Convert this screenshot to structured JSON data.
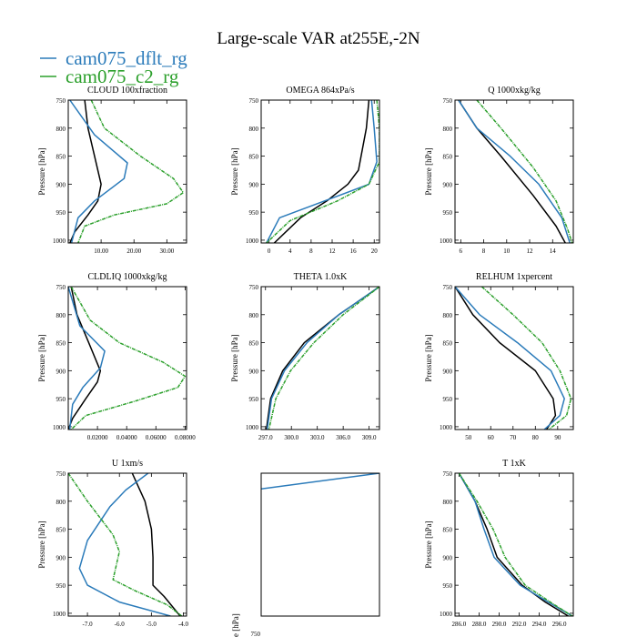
{
  "page": {
    "title": "Large-scale VAR at255E,-2N",
    "legend": [
      {
        "label": "cam075_dflt_rg",
        "color": "#2b7bba"
      },
      {
        "label": "cam075_c2_rg",
        "color": "#2ca02c"
      }
    ],
    "legend_placement": "top-left"
  },
  "colors": {
    "black_series": "#000000",
    "dflt": "#2b7bba",
    "c2": "#2ca02c"
  },
  "chart_data": [
    {
      "type": "line",
      "title": "CLOUD  100xfraction",
      "ylabel": "Pressure [hPa]",
      "xlim": [
        0,
        36
      ],
      "ylim": [
        1005,
        750
      ],
      "xticks": [
        10,
        20,
        30
      ],
      "xtick_labels": [
        "10.00",
        "20.00",
        "30.00"
      ],
      "yticks": [
        750,
        800,
        850,
        900,
        950,
        1000
      ],
      "ytick_labels": [
        "750",
        "800",
        "850",
        "900",
        "950",
        "1000"
      ],
      "series": [
        {
          "color": "#000000",
          "dashed": false,
          "x": [
            5,
            6,
            8,
            10,
            9,
            6,
            2,
            0.5
          ],
          "y": [
            750,
            800,
            850,
            900,
            930,
            955,
            985,
            1005
          ]
        },
        {
          "color": "#2b7bba",
          "dashed": false,
          "x": [
            0.5,
            8,
            18,
            17,
            8,
            3,
            1
          ],
          "y": [
            750,
            812,
            862,
            890,
            930,
            960,
            1005
          ]
        },
        {
          "color": "#2ca02c",
          "dashed": true,
          "x": [
            7,
            11,
            22,
            32,
            35,
            30,
            14,
            5,
            3
          ],
          "y": [
            750,
            800,
            850,
            890,
            915,
            935,
            955,
            975,
            1005
          ]
        }
      ]
    },
    {
      "type": "line",
      "title": "OMEGA  864xPa/s",
      "ylabel": "Pressure [hPa]",
      "xlim": [
        -1.5,
        21
      ],
      "ylim": [
        1005,
        750
      ],
      "xticks": [
        0,
        4,
        8,
        12,
        16,
        20
      ],
      "xtick_labels": [
        "0",
        "4",
        "8",
        "12",
        "16",
        "20"
      ],
      "yticks": [
        750,
        800,
        850,
        900,
        950,
        1000
      ],
      "ytick_labels": [
        "750",
        "800",
        "850",
        "900",
        "950",
        "1000"
      ],
      "series": [
        {
          "color": "#000000",
          "dashed": false,
          "x": [
            19,
            18.5,
            17,
            15,
            11,
            6,
            1
          ],
          "y": [
            750,
            800,
            875,
            900,
            930,
            960,
            1005
          ]
        },
        {
          "color": "#2b7bba",
          "dashed": false,
          "x": [
            19.5,
            20,
            20.5,
            19,
            12,
            2,
            -0.5
          ],
          "y": [
            750,
            800,
            860,
            900,
            925,
            960,
            1005
          ]
        },
        {
          "color": "#2ca02c",
          "dashed": true,
          "x": [
            20.5,
            21,
            21,
            19,
            13,
            4,
            -0.5
          ],
          "y": [
            750,
            800,
            860,
            900,
            930,
            965,
            1005
          ]
        }
      ]
    },
    {
      "type": "line",
      "title": "Q  1000xkg/kg",
      "ylabel": "Pressure [hPa]",
      "xlim": [
        5.5,
        15.8
      ],
      "ylim": [
        1005,
        750
      ],
      "xticks": [
        6,
        8,
        10,
        12,
        14
      ],
      "xtick_labels": [
        "6",
        "8",
        "10",
        "12",
        "14"
      ],
      "yticks": [
        750,
        800,
        850,
        900,
        950,
        1000
      ],
      "ytick_labels": [
        "750",
        "800",
        "850",
        "900",
        "950",
        "1000"
      ],
      "series": [
        {
          "color": "#000000",
          "dashed": false,
          "x": [
            5.8,
            7.4,
            9.5,
            12.3,
            14.3,
            15.1
          ],
          "y": [
            750,
            800,
            850,
            920,
            975,
            1005
          ]
        },
        {
          "color": "#2b7bba",
          "dashed": false,
          "x": [
            5.8,
            7.4,
            10.3,
            12.8,
            14.8,
            15.5
          ],
          "y": [
            750,
            800,
            850,
            900,
            960,
            1005
          ]
        },
        {
          "color": "#2ca02c",
          "dashed": true,
          "x": [
            7.4,
            9.5,
            12.3,
            14.3,
            15.3,
            15.7
          ],
          "y": [
            750,
            800,
            870,
            930,
            980,
            1005
          ]
        }
      ]
    },
    {
      "type": "line",
      "title": "CLDLIQ  1000xkg/kg",
      "ylabel": "Pressure [hPa]",
      "xlim": [
        0,
        0.081
      ],
      "ylim": [
        1005,
        750
      ],
      "xticks": [
        0.02,
        0.04,
        0.06,
        0.08
      ],
      "xtick_labels": [
        "0.02000",
        "0.04000",
        "0.06000",
        "0.08000"
      ],
      "yticks": [
        750,
        800,
        850,
        900,
        950,
        1000
      ],
      "ytick_labels": [
        "750",
        "800",
        "850",
        "900",
        "950",
        "1000"
      ],
      "series": [
        {
          "color": "#000000",
          "dashed": false,
          "x": [
            0.002,
            0.006,
            0.014,
            0.022,
            0.02,
            0.012,
            0.003,
            0
          ],
          "y": [
            750,
            800,
            850,
            900,
            920,
            950,
            985,
            1005
          ]
        },
        {
          "color": "#2b7bba",
          "dashed": false,
          "x": [
            0,
            0.008,
            0.025,
            0.022,
            0.01,
            0.003,
            0.001
          ],
          "y": [
            750,
            820,
            865,
            895,
            930,
            960,
            1005
          ]
        },
        {
          "color": "#2ca02c",
          "dashed": true,
          "x": [
            0.002,
            0.015,
            0.035,
            0.065,
            0.08,
            0.075,
            0.045,
            0.012,
            0.002
          ],
          "y": [
            750,
            810,
            850,
            885,
            910,
            930,
            955,
            980,
            1005
          ]
        }
      ]
    },
    {
      "type": "line",
      "title": "THETA  1.0xK",
      "ylabel": "Pressure [hPa]",
      "xlim": [
        296.5,
        310.2
      ],
      "ylim": [
        1005,
        750
      ],
      "xticks": [
        297,
        300,
        303,
        306,
        309
      ],
      "xtick_labels": [
        "297.0",
        "300.0",
        "303.0",
        "306.0",
        "309.0"
      ],
      "yticks": [
        750,
        800,
        850,
        900,
        950,
        1000
      ],
      "ytick_labels": [
        "750",
        "800",
        "850",
        "900",
        "950",
        "1000"
      ],
      "series": [
        {
          "color": "#000000",
          "dashed": false,
          "x": [
            310.2,
            305.5,
            301.5,
            299.0,
            297.6,
            297.1
          ],
          "y": [
            750,
            800,
            850,
            900,
            950,
            1005
          ]
        },
        {
          "color": "#2b7bba",
          "dashed": false,
          "x": [
            310.2,
            305.5,
            301.8,
            299.2,
            297.7,
            297.2
          ],
          "y": [
            750,
            800,
            850,
            900,
            950,
            1005
          ]
        },
        {
          "color": "#2ca02c",
          "dashed": true,
          "x": [
            310.2,
            306.0,
            302.6,
            299.9,
            298.2,
            297.4
          ],
          "y": [
            750,
            800,
            850,
            900,
            950,
            1005
          ]
        }
      ]
    },
    {
      "type": "line",
      "title": "RELHUM  1xpercent",
      "ylabel": "Pressure [hPa]",
      "xlim": [
        44,
        97
      ],
      "ylim": [
        1005,
        750
      ],
      "xticks": [
        50,
        60,
        70,
        80,
        90
      ],
      "xtick_labels": [
        "50",
        "60",
        "70",
        "80",
        "90"
      ],
      "yticks": [
        750,
        800,
        850,
        900,
        950,
        1000
      ],
      "ytick_labels": [
        "750",
        "800",
        "850",
        "900",
        "950",
        "1000"
      ],
      "series": [
        {
          "color": "#000000",
          "dashed": false,
          "x": [
            44,
            52,
            64,
            80,
            88,
            89,
            85
          ],
          "y": [
            750,
            800,
            850,
            900,
            950,
            980,
            1005
          ]
        },
        {
          "color": "#2b7bba",
          "dashed": false,
          "x": [
            44,
            55,
            72,
            87,
            93,
            91,
            84
          ],
          "y": [
            750,
            800,
            850,
            900,
            950,
            980,
            1005
          ]
        },
        {
          "color": "#2ca02c",
          "dashed": true,
          "x": [
            56,
            70,
            83,
            91,
            96,
            94,
            86
          ],
          "y": [
            750,
            800,
            850,
            900,
            950,
            980,
            1005
          ]
        }
      ]
    },
    {
      "type": "line",
      "title": "U  1xm/s",
      "ylabel": "Pressure [hPa]",
      "xlim": [
        -7.6,
        -3.9
      ],
      "ylim": [
        1005,
        750
      ],
      "xticks": [
        -7,
        -6,
        -5,
        -4
      ],
      "xtick_labels": [
        "-7.0",
        "-6.0",
        "-5.0",
        "-4.0"
      ],
      "yticks": [
        750,
        800,
        850,
        900,
        950,
        1000
      ],
      "ytick_labels": [
        "750",
        "800",
        "850",
        "900",
        "950",
        "1000"
      ],
      "series": [
        {
          "color": "#000000",
          "dashed": false,
          "x": [
            -5.6,
            -5.2,
            -5.0,
            -4.95,
            -4.95,
            -4.6,
            -4.1
          ],
          "y": [
            750,
            800,
            850,
            900,
            950,
            970,
            1005
          ]
        },
        {
          "color": "#2b7bba",
          "dashed": false,
          "x": [
            -5.1,
            -5.8,
            -6.3,
            -7.0,
            -7.25,
            -7.0,
            -6.0,
            -4.4
          ],
          "y": [
            750,
            780,
            810,
            870,
            920,
            950,
            980,
            1005
          ]
        },
        {
          "color": "#2ca02c",
          "dashed": true,
          "x": [
            -7.6,
            -7.0,
            -6.2,
            -6.0,
            -6.2,
            -5.5,
            -4.5,
            -4.05
          ],
          "y": [
            750,
            800,
            860,
            890,
            940,
            960,
            985,
            1005
          ]
        }
      ]
    },
    {
      "type": "line",
      "title": "",
      "ylabel": "",
      "xlim": [
        0,
        1
      ],
      "ylim": [
        1005,
        750
      ],
      "xticks": [],
      "xtick_labels": [],
      "yticks": [],
      "ytick_labels": [],
      "series": [
        {
          "color": "#2b7bba",
          "dashed": false,
          "x": [
            0,
            1
          ],
          "y": [
            778,
            750
          ]
        }
      ]
    },
    {
      "type": "line",
      "title": "T  1xK",
      "ylabel": "Pressure [hPa]",
      "xlim": [
        285.6,
        297.4
      ],
      "ylim": [
        1005,
        750
      ],
      "xticks": [
        286,
        288,
        290,
        292,
        294,
        296
      ],
      "xtick_labels": [
        "286.0",
        "288.0",
        "290.0",
        "292.0",
        "294.0",
        "296.0"
      ],
      "yticks": [
        750,
        800,
        850,
        900,
        950,
        1000
      ],
      "ytick_labels": [
        "750",
        "800",
        "850",
        "900",
        "950",
        "1000"
      ],
      "series": [
        {
          "color": "#000000",
          "dashed": false,
          "x": [
            286.0,
            287.6,
            288.8,
            289.8,
            292.3,
            294.6,
            296.9
          ],
          "y": [
            750,
            800,
            850,
            900,
            950,
            980,
            1005
          ]
        },
        {
          "color": "#2b7bba",
          "dashed": false,
          "x": [
            286.0,
            287.6,
            288.5,
            289.5,
            292.1,
            294.9,
            297.3
          ],
          "y": [
            750,
            800,
            850,
            900,
            950,
            980,
            1005
          ]
        },
        {
          "color": "#2ca02c",
          "dashed": true,
          "x": [
            286.0,
            287.8,
            289.4,
            290.6,
            292.6,
            295.1,
            297.3
          ],
          "y": [
            750,
            800,
            850,
            900,
            950,
            980,
            1005
          ]
        }
      ]
    }
  ],
  "overflow_fragments": {
    "ylabel_fragment": "e [hPa]",
    "ytick_fragment": "750"
  }
}
